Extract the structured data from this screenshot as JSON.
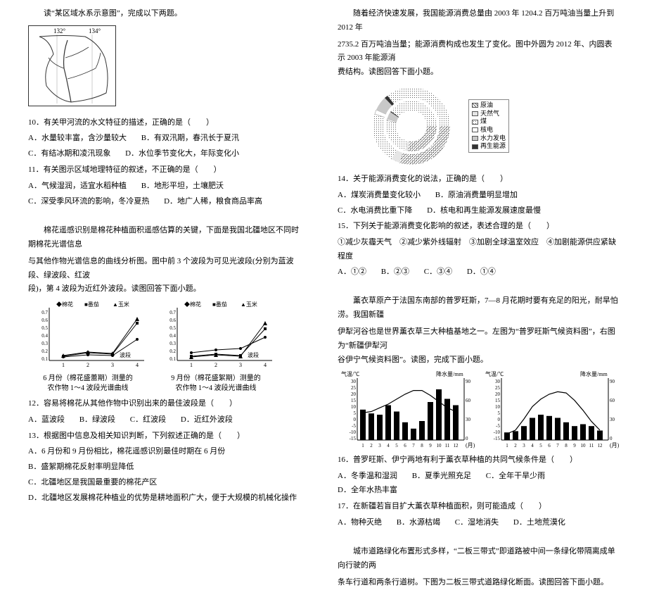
{
  "left": {
    "intro1": "读“某区域水系示意图”，完成以下两题。",
    "map": {
      "lons": [
        "132°",
        "134°"
      ],
      "border_color": "#333",
      "river_color": "#333",
      "land_color": "#fff"
    },
    "q10": "10．有关甲河流的水文特征的描述，正确的是（　　）",
    "q10opts": [
      "A．水量较丰富，含沙量较大",
      "B．有双汛期，春汛长于夏汛",
      "C．有结冰期和凌汛现象",
      "D．水位季节变化大，年际变化小"
    ],
    "q11": "11．有关图示区域地理特征的叙述，不正确的是（　　）",
    "q11opts": [
      "A．气候湿润，适宜水稻种植",
      "B．地形平坦，土壤肥沃",
      "C．深受季风环流的影响，冬冷夏热",
      "D．地广人稀，粮食商品率高"
    ],
    "intro2a": "棉花遥感识别是棉花种植面积遥感估算的关键，下面是我国北疆地区不同时期棉花光谱信息",
    "intro2b": "与其他作物光谱信息的曲线分析图。图中前 3 个波段为可见光波段(分别为蓝波段、绿波段、红波",
    "intro2c": "段)，第 4 波段为近红外波段。读图回答下面小题。",
    "spectral": {
      "legend": [
        "棉花",
        "番茄",
        "玉米"
      ],
      "legend_markers": [
        "◆",
        "■",
        "▲"
      ],
      "series_color": "#000",
      "axis_color": "#000",
      "x_label": "波段",
      "x_ticks": [
        1,
        2,
        3,
        4
      ],
      "y_ticks": [
        0.1,
        0.2,
        0.3,
        0.4,
        0.5,
        0.6,
        0.7
      ],
      "y_label": "反射率",
      "left": {
        "caption1": "6 月份（棉花盛蕾期）测量的",
        "caption2": "农作物 1～4 波段光谱曲线",
        "cotton": [
          0.08,
          0.11,
          0.1,
          0.33
        ],
        "tomato": [
          0.09,
          0.14,
          0.12,
          0.55
        ],
        "corn": [
          0.1,
          0.15,
          0.13,
          0.6
        ]
      },
      "right": {
        "caption1": "9 月份（棉花盛絮期）测量的",
        "caption2": "农作物 1～4 波段光谱曲线",
        "cotton": [
          0.14,
          0.18,
          0.2,
          0.36
        ],
        "tomato": [
          0.09,
          0.12,
          0.1,
          0.47
        ],
        "corn": [
          0.08,
          0.11,
          0.09,
          0.55
        ]
      }
    },
    "q12": "12．容易将棉花从其他作物中识别出来的最佳波段是（　　）",
    "q12opts": [
      "A．蓝波段",
      "B．绿波段",
      "C．红波段",
      "D．近红外波段"
    ],
    "q13": "13．根据图中信息及相关知识判断，下列叙述正确的是（　　）",
    "q13opts": [
      "A．6 月份和 9 月份相比，棉花遥感识别最佳时期在 6 月份",
      "B．盛絮期棉花反射率明显降低",
      "C．北疆地区是我国最重要的棉花产区",
      "D．北疆地区发展棉花种植业的优势是耕地面积广大，便于大规模的机械化操作"
    ]
  },
  "right": {
    "intro1a": "随着经济快速发展，我国能源消费总量由 2003 年 1204.2 百万吨油当量上升到 2012 年",
    "intro1b": "2735.2 百万吨油当量；能源消费构成也发生了变化。图中外圆为 2012 年、内圆表示 2003 年能源消",
    "intro1c": "费结构。读图回答下面小题。",
    "donut": {
      "categories": [
        "原油",
        "天然气",
        "煤",
        "核电",
        "水力发电",
        "再生能源"
      ],
      "colors": [
        "#bfbfbf",
        "#e6e6e6",
        "#9a9a9a",
        "#ffffff",
        "#c8c8c8",
        "#333333"
      ],
      "hatch": [
        "diag",
        "none",
        "dots",
        "none",
        "diag",
        "none"
      ],
      "inner_2003": [
        22,
        2,
        69,
        1,
        5,
        1
      ],
      "outer_2012": [
        18,
        5,
        67,
        1,
        7,
        2
      ],
      "ring_gap": 4
    },
    "q14": "14．关于能源消费变化的说法，正确的是（　　）",
    "q14opts": [
      "A．煤炭消费量变化较小",
      "B．原油消费量明显增加",
      "C．水电消费比重下降",
      "D．核电和再生能源发展速度最慢"
    ],
    "q15": "15．下列关于能源消费变化影响的叙述，表述合理的是（　　）",
    "q15stems": "①减少灰霾天气　②减少紫外线辐射　③加剧全球温室效应　④加剧能源供应紧缺程度",
    "q15opts": [
      "A．①②",
      "B．②③",
      "C．③④",
      "D．①④"
    ],
    "intro2a": "薰衣草原产于法国东南部的普罗旺斯，7—8 月花期时要有充足的阳光，耐旱怕涝。我国新疆",
    "intro2b": "伊犁河谷也是世界薰衣草三大种植基地之一。左图为“普罗旺斯气候资料图”，右图为“新疆伊犁河",
    "intro2c": "谷伊宁气候资料图”。读图，完成下面小题。",
    "climate": {
      "months": [
        1,
        2,
        3,
        4,
        5,
        6,
        7,
        8,
        9,
        10,
        11,
        12
      ],
      "x_label": "(月)",
      "temp_label": "气温/℃",
      "precip_label": "降水量/mm",
      "temp_ticks": [
        -15,
        -10,
        -5,
        0,
        5,
        10,
        15,
        20,
        25,
        30,
        35
      ],
      "precip_ticks": [
        0,
        30,
        60,
        90
      ],
      "bar_color": "#000",
      "line_color": "#000",
      "left_provence": {
        "temp": [
          7,
          8,
          11,
          14,
          18,
          22,
          25,
          25,
          21,
          16,
          11,
          8
        ],
        "precip": [
          48,
          42,
          40,
          55,
          45,
          28,
          18,
          30,
          60,
          80,
          65,
          55
        ]
      },
      "right_yining": {
        "temp": [
          -10,
          -7,
          2,
          12,
          18,
          22,
          24,
          23,
          17,
          9,
          0,
          -7
        ],
        "precip": [
          12,
          14,
          22,
          35,
          40,
          38,
          35,
          28,
          22,
          25,
          22,
          15
        ]
      }
    },
    "q16": "16．普罗旺斯、伊宁两地有利于薰衣草种植的共同气候条件是（　　）",
    "q16opts": [
      "A．冬季温和湿润",
      "B．夏季光照充足",
      "C．全年干旱少雨",
      "D．全年水热丰富"
    ],
    "q17": "17．在新疆若盲目扩大薰衣草种植面积，则可能造成（　　）",
    "q17opts": [
      "A．物种灭绝",
      "B．水源枯竭",
      "C．湿地消失",
      "D．土地荒漠化"
    ],
    "intro3a": "城市道路绿化布置形式多样，“二板三带式”即道路被中间一条绿化带隔离成单向行驶的两",
    "intro3b": "条车行道和两条行道树。下图为二板三带式道路绿化断面。读图回答下面小题。"
  }
}
